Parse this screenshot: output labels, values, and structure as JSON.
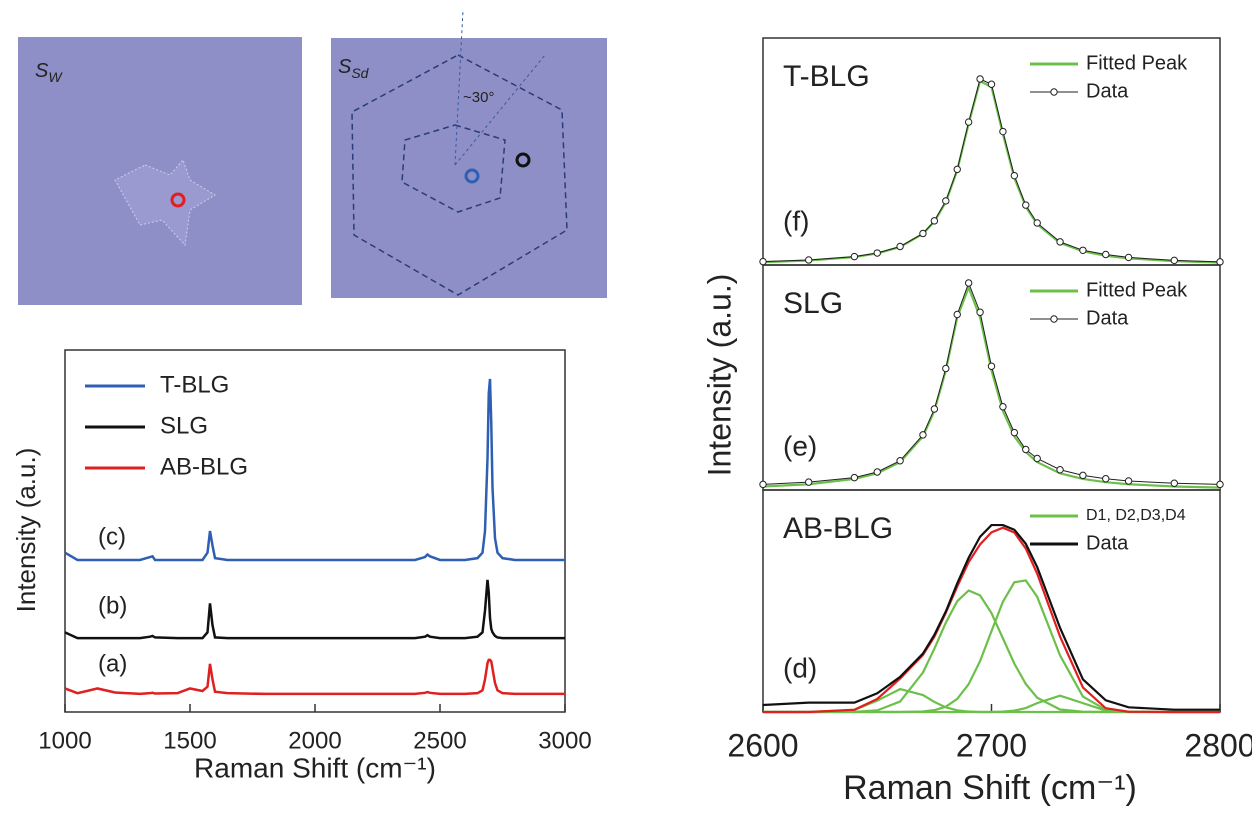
{
  "images": [
    {
      "label": "S",
      "subscript": "W"
    },
    {
      "label": "S",
      "subscript": "Sd",
      "annotation": "~30°"
    }
  ],
  "chart_data": [
    {
      "type": "line",
      "xlabel": "Raman Shift (cm⁻¹)",
      "ylabel": "Intensity (a.u.)",
      "xlim": [
        1000,
        3000
      ],
      "xticks": [
        1000,
        1500,
        2000,
        2500,
        3000
      ],
      "ylim": [
        0,
        100
      ],
      "legend": "upper left",
      "annotations": [
        "(c)",
        "(b)",
        "(a)"
      ],
      "x": [
        1000,
        1050,
        1100,
        1130,
        1200,
        1300,
        1340,
        1350,
        1360,
        1450,
        1500,
        1550,
        1570,
        1580,
        1590,
        1600,
        1650,
        1800,
        2000,
        2200,
        2400,
        2440,
        2450,
        2460,
        2500,
        2600,
        2650,
        2670,
        2680,
        2690,
        2695,
        2700,
        2705,
        2710,
        2720,
        2730,
        2750,
        2800,
        3000
      ],
      "series": [
        {
          "name": "T-BLG",
          "color": "#2f5fb3",
          "values": [
            44,
            42,
            42,
            42,
            42,
            42,
            42.8,
            43,
            42,
            42,
            42,
            42,
            44,
            50,
            46,
            42.5,
            42,
            42,
            42,
            42,
            42,
            42.8,
            43.5,
            43,
            42,
            42,
            42.5,
            44,
            50,
            70,
            88,
            92,
            80,
            62,
            48,
            44,
            42.5,
            42,
            42
          ]
        },
        {
          "name": "SLG",
          "color": "#111111",
          "values": [
            22,
            20.4,
            20.4,
            20.4,
            20.4,
            20.4,
            20.8,
            21,
            20.6,
            20.4,
            20.4,
            20.4,
            22,
            30,
            24,
            20.6,
            20.4,
            20.4,
            20.4,
            20.4,
            20.4,
            20.8,
            21.2,
            20.8,
            20.4,
            20.4,
            20.8,
            22,
            28,
            36.5,
            33,
            26,
            23,
            22,
            21,
            20.6,
            20.4,
            20.4,
            20.4
          ]
        },
        {
          "name": "AB-BLG",
          "color": "#e02020",
          "values": [
            6.5,
            5.2,
            6,
            6.5,
            5.4,
            5,
            5.2,
            5.3,
            5.1,
            5.2,
            6.5,
            5.8,
            7,
            13.3,
            9,
            5.6,
            5.2,
            5,
            5,
            5,
            5,
            5.3,
            5.5,
            5.3,
            5,
            5,
            5.2,
            6,
            9,
            13.5,
            14.4,
            14.4,
            14,
            12,
            8,
            6,
            5.2,
            5,
            5
          ]
        }
      ]
    },
    {
      "type": "line",
      "title": "T-BLG",
      "annotation": "(f)",
      "ylabel": "Intensity (a.u.)",
      "xlim": [
        2600,
        2800
      ],
      "ylim": [
        0,
        108
      ],
      "legend": "upper right",
      "x": [
        2600,
        2620,
        2640,
        2650,
        2660,
        2670,
        2675,
        2680,
        2685,
        2690,
        2695,
        2700,
        2705,
        2710,
        2715,
        2720,
        2730,
        2740,
        2750,
        2760,
        2780,
        2800
      ],
      "series": [
        {
          "name": "Fitted Peak",
          "color": "#6cc04a",
          "values": [
            1.36,
            2.13,
            3.81,
            5.52,
            8.57,
            14.85,
            20.6,
            29.9,
            45,
            67.2,
            87.5,
            84.7,
            62.3,
            41.4,
            27.7,
            19.3,
            10.5,
            6.5,
            4.4,
            3.15,
            1.84,
            1.2
          ]
        },
        {
          "name": "Data",
          "color": "#222222",
          "marker": "circle",
          "values": [
            1.6,
            2.4,
            4,
            5.7,
            8.8,
            15,
            21,
            30.5,
            45.5,
            68,
            88.5,
            86,
            63.5,
            42.5,
            28.5,
            20,
            11,
            7,
            5,
            3.6,
            2.2,
            1.5
          ]
        }
      ]
    },
    {
      "type": "line",
      "title": "SLG",
      "annotation": "(e)",
      "xlim": [
        2600,
        2800
      ],
      "ylim": [
        0,
        100
      ],
      "legend": "upper right",
      "x": [
        2600,
        2620,
        2640,
        2650,
        2660,
        2670,
        2675,
        2680,
        2685,
        2690,
        2695,
        2700,
        2705,
        2710,
        2715,
        2720,
        2730,
        2740,
        2750,
        2760,
        2780,
        2800
      ],
      "series": [
        {
          "name": "Fitted Peak",
          "color": "#6cc04a",
          "values": [
            1.57,
            2.57,
            4.9,
            7.4,
            12.4,
            23.8,
            35.1,
            53.1,
            76.7,
            90,
            76.7,
            53.1,
            35.1,
            23.8,
            16.9,
            12.4,
            7.4,
            4.9,
            3.46,
            2.57,
            1.57,
            1.06
          ]
        },
        {
          "name": "Data",
          "color": "#222222",
          "marker": "circle",
          "values": [
            2.5,
            3.5,
            5.5,
            8,
            13,
            24.5,
            36,
            54,
            78,
            92,
            79,
            55,
            37,
            25.5,
            18,
            14,
            9,
            6.5,
            5,
            4,
            3,
            2.5
          ]
        }
      ]
    },
    {
      "type": "line",
      "title": "AB-BLG",
      "annotation": "(d)",
      "xlabel": "Raman Shift (cm⁻¹)",
      "xlim": [
        2600,
        2800
      ],
      "xticks": [
        2600,
        2700,
        2800
      ],
      "ylim": [
        0,
        95
      ],
      "legend": "upper right",
      "x": [
        2600,
        2620,
        2640,
        2650,
        2660,
        2670,
        2675,
        2680,
        2685,
        2690,
        2695,
        2700,
        2705,
        2710,
        2715,
        2720,
        2730,
        2740,
        2750,
        2760,
        2780,
        2800
      ],
      "series": [
        {
          "name": "D1, D2,D3,D4",
          "color": "#6cc04a",
          "curves": [
            [
              0,
              0,
              0.89,
              4.87,
              9.8,
              7.26,
              4.3,
              1.98,
              0.71,
              0.2,
              0,
              0,
              0,
              0,
              0,
              0,
              0,
              0,
              0,
              0,
              0,
              0
            ],
            [
              0,
              0,
              0.07,
              0.71,
              4.48,
              16.9,
              27.1,
              38.2,
              47.4,
              52,
              49.9,
              42.3,
              31.5,
              20.7,
              12,
              6.1,
              1.07,
              0.11,
              0,
              0,
              0,
              0
            ],
            [
              0,
              0,
              0,
              0,
              0.01,
              0.24,
              0.79,
              2.27,
              5.6,
              11.9,
              21.8,
              34.6,
              47.2,
              55.5,
              56.3,
              49.3,
              24.2,
              6.6,
              1,
              0.08,
              0,
              0
            ],
            [
              0,
              0,
              0,
              0,
              0,
              0,
              0,
              0,
              0,
              0,
              0,
              0,
              0.15,
              0.6,
              1.7,
              3.8,
              7,
              3.8,
              0.6,
              0.03,
              0,
              0
            ]
          ]
        },
        {
          "color": "#e02020",
          "values": [
            0,
            0,
            0.96,
            5.58,
            14.29,
            24.4,
            32.2,
            42.45,
            53.7,
            64.1,
            71.7,
            76.9,
            78.85,
            76.8,
            70,
            59.2,
            32.27,
            10.51,
            1.6,
            0.11,
            0,
            0
          ]
        },
        {
          "name": "Data",
          "color": "#111111",
          "values": [
            3,
            4,
            4,
            8,
            15,
            25,
            33,
            43,
            55,
            66,
            75,
            80,
            80,
            78,
            72,
            62,
            36,
            14,
            5,
            2,
            1,
            1
          ]
        }
      ]
    }
  ]
}
